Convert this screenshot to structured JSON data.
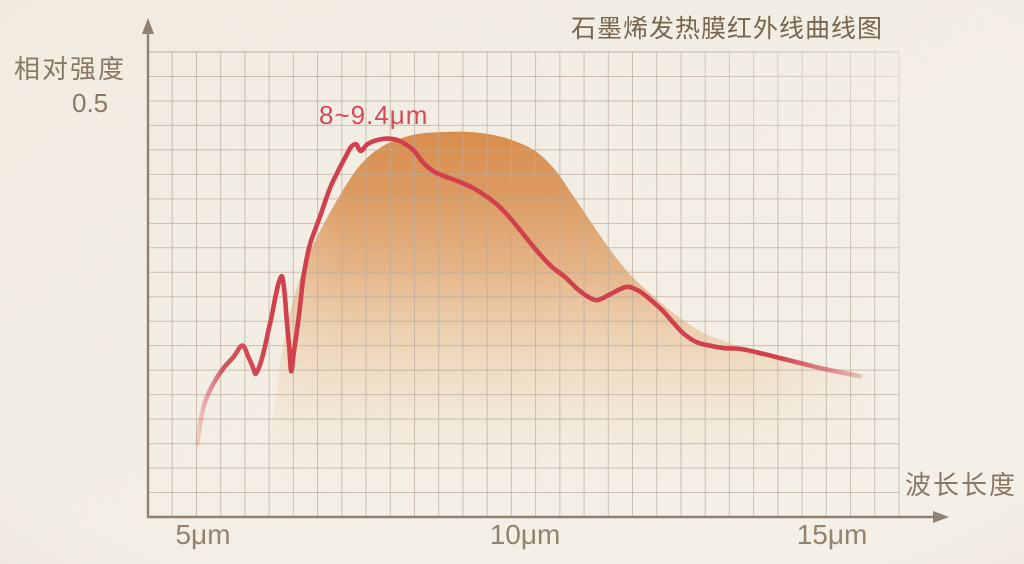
{
  "title": "石墨烯发热膜红外线曲线图",
  "y_axis": {
    "label": "相对强度",
    "tick": "0.5"
  },
  "x_axis": {
    "label": "波长长度",
    "ticks": [
      "5μm",
      "10μm",
      "15μm"
    ]
  },
  "annotation": "8~9.4μm",
  "colors": {
    "background": "#f4efe5",
    "curve": "#d13f4b",
    "area_top": "#d78743",
    "area_mid": "#e2a873",
    "area_low": "#efd7b7",
    "grid": "#b9ab9b",
    "axis": "#8f8172",
    "title_text": "#77654f",
    "label_text": "#8a7866",
    "tick_text": "#93826e",
    "annotation_text": "#d5495a"
  },
  "chart_data": {
    "type": "area+line",
    "title": "石墨烯发热膜红外线曲线图",
    "xlabel": "波长长度",
    "ylabel": "相对强度",
    "x_unit": "μm",
    "x_ticks": [
      5,
      10,
      15
    ],
    "x_tick_labels": [
      "5μm",
      "10μm",
      "15μm"
    ],
    "y_tick": 0.5,
    "xlim": [
      4.2,
      16.2
    ],
    "ylim": [
      0,
      0.56
    ],
    "grid": true,
    "legend": false,
    "annotation": {
      "text": "8~9.4μm",
      "x_range": [
        8,
        9.4
      ]
    },
    "series": [
      {
        "name": "curve",
        "type": "line",
        "points": [
          [
            4.91,
            0.088
          ],
          [
            4.95,
            0.112
          ],
          [
            5.03,
            0.139
          ],
          [
            5.16,
            0.161
          ],
          [
            5.31,
            0.179
          ],
          [
            5.47,
            0.193
          ],
          [
            5.61,
            0.207
          ],
          [
            5.7,
            0.194
          ],
          [
            5.78,
            0.18
          ],
          [
            5.82,
            0.173
          ],
          [
            5.89,
            0.185
          ],
          [
            5.95,
            0.202
          ],
          [
            6.01,
            0.223
          ],
          [
            6.07,
            0.244
          ],
          [
            6.13,
            0.268
          ],
          [
            6.18,
            0.284
          ],
          [
            6.23,
            0.29
          ],
          [
            6.27,
            0.268
          ],
          [
            6.3,
            0.238
          ],
          [
            6.34,
            0.204
          ],
          [
            6.37,
            0.176
          ],
          [
            6.41,
            0.199
          ],
          [
            6.46,
            0.226
          ],
          [
            6.51,
            0.256
          ],
          [
            6.55,
            0.285
          ],
          [
            6.6,
            0.308
          ],
          [
            6.66,
            0.329
          ],
          [
            6.74,
            0.347
          ],
          [
            6.83,
            0.366
          ],
          [
            6.97,
            0.397
          ],
          [
            7.1,
            0.418
          ],
          [
            7.22,
            0.436
          ],
          [
            7.3,
            0.447
          ],
          [
            7.38,
            0.45
          ],
          [
            7.45,
            0.442
          ],
          [
            7.55,
            0.45
          ],
          [
            7.69,
            0.455
          ],
          [
            7.87,
            0.457
          ],
          [
            8.03,
            0.455
          ],
          [
            8.15,
            0.45
          ],
          [
            8.28,
            0.442
          ],
          [
            8.42,
            0.428
          ],
          [
            8.59,
            0.417
          ],
          [
            8.77,
            0.411
          ],
          [
            8.94,
            0.406
          ],
          [
            9.15,
            0.399
          ],
          [
            9.35,
            0.39
          ],
          [
            9.57,
            0.377
          ],
          [
            9.77,
            0.361
          ],
          [
            9.98,
            0.341
          ],
          [
            10.2,
            0.32
          ],
          [
            10.42,
            0.302
          ],
          [
            10.62,
            0.29
          ],
          [
            10.82,
            0.275
          ],
          [
            10.98,
            0.266
          ],
          [
            11.13,
            0.262
          ],
          [
            11.32,
            0.269
          ],
          [
            11.47,
            0.275
          ],
          [
            11.6,
            0.278
          ],
          [
            11.79,
            0.272
          ],
          [
            11.97,
            0.261
          ],
          [
            12.14,
            0.249
          ],
          [
            12.31,
            0.234
          ],
          [
            12.47,
            0.221
          ],
          [
            12.67,
            0.211
          ],
          [
            12.87,
            0.207
          ],
          [
            13.09,
            0.204
          ],
          [
            13.34,
            0.203
          ],
          [
            13.65,
            0.198
          ],
          [
            13.96,
            0.192
          ],
          [
            14.27,
            0.186
          ],
          [
            14.58,
            0.18
          ],
          [
            14.89,
            0.175
          ],
          [
            15.2,
            0.17
          ]
        ]
      },
      {
        "name": "envelope",
        "type": "area",
        "points": [
          [
            5.98,
            0.021
          ],
          [
            6.04,
            0.093
          ],
          [
            6.15,
            0.159
          ],
          [
            6.29,
            0.226
          ],
          [
            6.46,
            0.277
          ],
          [
            6.66,
            0.32
          ],
          [
            6.89,
            0.356
          ],
          [
            7.16,
            0.393
          ],
          [
            7.44,
            0.425
          ],
          [
            7.75,
            0.446
          ],
          [
            8.06,
            0.457
          ],
          [
            8.37,
            0.463
          ],
          [
            8.76,
            0.465
          ],
          [
            9.15,
            0.465
          ],
          [
            9.53,
            0.461
          ],
          [
            9.84,
            0.454
          ],
          [
            10.16,
            0.442
          ],
          [
            10.47,
            0.419
          ],
          [
            10.73,
            0.39
          ],
          [
            11.01,
            0.358
          ],
          [
            11.29,
            0.326
          ],
          [
            11.63,
            0.293
          ],
          [
            11.99,
            0.267
          ],
          [
            12.36,
            0.243
          ],
          [
            12.76,
            0.223
          ],
          [
            13.18,
            0.21
          ],
          [
            13.6,
            0.2
          ],
          [
            14.11,
            0.191
          ],
          [
            14.58,
            0.182
          ],
          [
            15.05,
            0.175
          ],
          [
            15.48,
            0.169
          ]
        ]
      }
    ]
  }
}
